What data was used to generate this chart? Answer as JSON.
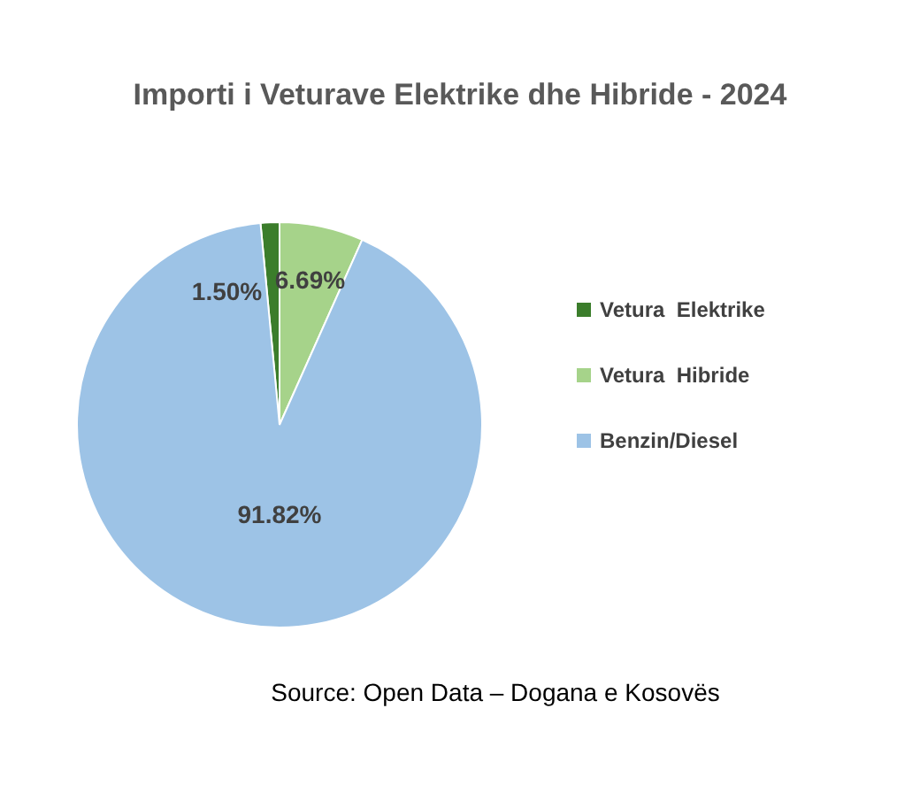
{
  "chart_data": {
    "type": "pie",
    "title": "Importi i Veturave Elektrike dhe Hibride - 2024",
    "categories": [
      "Vetura  Elektrike",
      "Vetura  Hibride",
      "Benzin/Diesel"
    ],
    "values": [
      1.5,
      6.69,
      91.82
    ],
    "colors": [
      "#3b7d2b",
      "#a6d38a",
      "#9dc3e6"
    ],
    "value_labels": [
      "1.50%",
      "6.69%",
      "91.82%"
    ],
    "legend": "right",
    "annotations": [
      "Source:  Open Data – Dogana e Kosovës"
    ]
  }
}
